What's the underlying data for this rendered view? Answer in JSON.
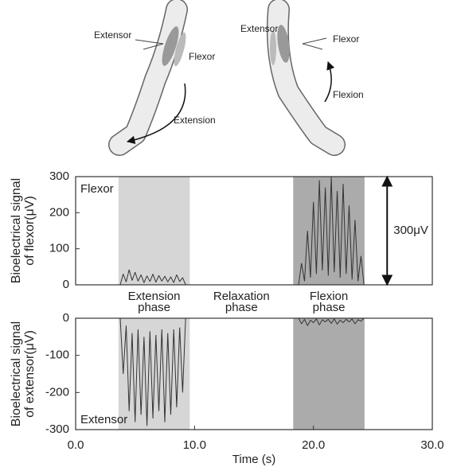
{
  "illustration": {
    "left": [
      "Extensor",
      "Flexor",
      "Extension"
    ],
    "right": [
      "Extensor",
      "Flexor",
      "Flexion"
    ]
  },
  "phases": [
    {
      "label": "Extension phase",
      "start": 3.6,
      "end": 9.6,
      "color": "#d6d6d6"
    },
    {
      "label": "Relaxation phase"
    },
    {
      "label": "Flexion phase",
      "start": 18.3,
      "end": 24.3,
      "color": "#ababab"
    }
  ],
  "chart_data": [
    {
      "type": "line",
      "y_label": "Bioelectrical signal of flexor(μV)",
      "legend": "upper left",
      "xlim": [
        0,
        30
      ],
      "ylim": [
        0,
        300
      ],
      "yticks": [
        0,
        100,
        200,
        300
      ],
      "x": [
        0,
        3.75,
        4,
        4.25,
        4.5,
        4.75,
        5,
        5.25,
        5.5,
        5.75,
        6,
        6.25,
        6.5,
        6.75,
        7,
        7.25,
        7.5,
        7.75,
        8,
        8.25,
        8.5,
        8.75,
        9,
        9.25,
        18.75,
        19,
        19.25,
        19.5,
        19.75,
        20,
        20.25,
        20.5,
        20.75,
        21,
        21.25,
        21.5,
        21.75,
        22,
        22.25,
        22.5,
        22.75,
        23,
        23.25,
        23.5,
        23.75,
        24,
        24.25,
        30
      ],
      "series": [
        {
          "name": "Flexor",
          "color": "#333333",
          "values": [
            0,
            0,
            30,
            8,
            42,
            12,
            35,
            10,
            28,
            6,
            25,
            9,
            30,
            7,
            26,
            10,
            24,
            8,
            22,
            6,
            28,
            9,
            20,
            0,
            0,
            60,
            10,
            150,
            20,
            230,
            30,
            290,
            40,
            270,
            25,
            300,
            35,
            260,
            20,
            280,
            30,
            220,
            15,
            180,
            10,
            80,
            0,
            0
          ]
        }
      ],
      "annotation": {
        "text": "300μV",
        "x": 26.2,
        "from": 0,
        "to": 300
      }
    },
    {
      "type": "line",
      "y_label": "Bioelectrical signal of extensor(μV)",
      "legend": "lower left",
      "x_label": "Time (s)",
      "xlim": [
        0,
        30
      ],
      "ylim": [
        -300,
        0
      ],
      "yticks": [
        -300,
        -200,
        -100,
        0
      ],
      "xticks": [
        {
          "value": 0,
          "label": "0.0"
        },
        {
          "value": 10,
          "label": "10.0"
        },
        {
          "value": 20,
          "label": "20.0"
        },
        {
          "value": 30,
          "label": "30.0"
        }
      ],
      "x": [
        0,
        3.75,
        4,
        4.25,
        4.5,
        4.75,
        5,
        5.25,
        5.5,
        5.75,
        6,
        6.25,
        6.5,
        6.75,
        7,
        7.25,
        7.5,
        7.75,
        8,
        8.25,
        8.5,
        8.75,
        9,
        9.25,
        18.75,
        19,
        19.25,
        19.5,
        19.75,
        20,
        20.25,
        20.5,
        20.75,
        21,
        21.25,
        21.5,
        21.75,
        22,
        22.25,
        22.5,
        22.75,
        23,
        23.25,
        23.5,
        23.75,
        24,
        24.25,
        30
      ],
      "series": [
        {
          "name": "Extensor",
          "color": "#333333",
          "values": [
            0,
            0,
            -150,
            -20,
            -250,
            -40,
            -280,
            -30,
            -260,
            -50,
            -290,
            -35,
            -270,
            -45,
            -250,
            -30,
            -280,
            -40,
            -260,
            -30,
            -240,
            -25,
            -200,
            0,
            0,
            -15,
            -3,
            -20,
            -5,
            -12,
            -2,
            -18,
            -4,
            -10,
            -3,
            -14,
            -2,
            -16,
            -5,
            -12,
            -3,
            -10,
            -2,
            -15,
            -4,
            -8,
            0,
            0
          ]
        }
      ]
    }
  ]
}
